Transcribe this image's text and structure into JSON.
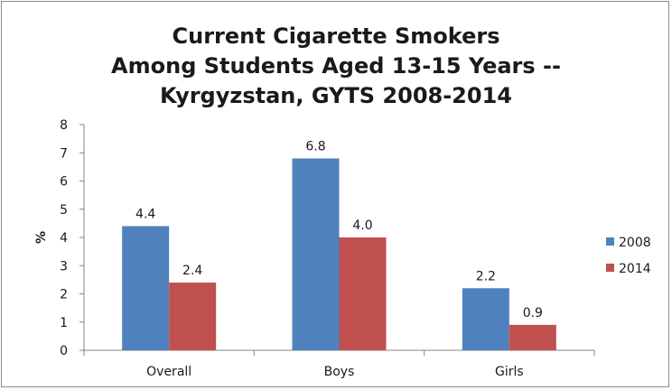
{
  "chart_data": {
    "type": "bar",
    "title_lines": [
      "Current Cigarette Smokers",
      "Among Students Aged 13-15 Years --",
      "Kyrgyzstan, GYTS 2008-2014"
    ],
    "xlabel": "",
    "ylabel": "%",
    "ylim": [
      0,
      8
    ],
    "yticks": [
      0,
      1,
      2,
      3,
      4,
      5,
      6,
      7,
      8
    ],
    "categories": [
      "Overall",
      "Boys",
      "Girls"
    ],
    "series": [
      {
        "name": "2008",
        "values": [
          4.4,
          6.8,
          2.2
        ],
        "labels": [
          "4.4",
          "6.8",
          "2.2"
        ],
        "color": "#4F81BD"
      },
      {
        "name": "2014",
        "values": [
          2.4,
          4.0,
          0.9
        ],
        "labels": [
          "2.4",
          "4.0",
          "0.9"
        ],
        "color": "#C0504D"
      }
    ],
    "grid": false,
    "legend_position": "right"
  }
}
